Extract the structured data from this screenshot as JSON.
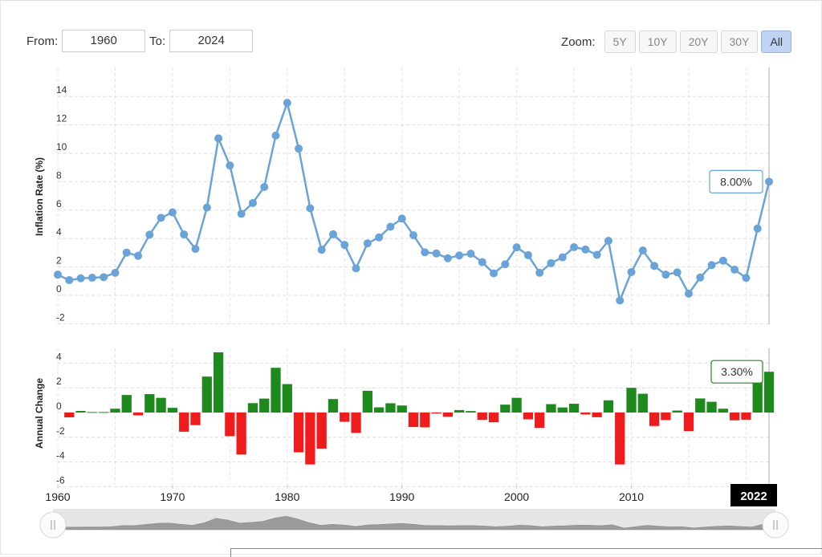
{
  "range": {
    "from_label": "From:",
    "from_value": "1960",
    "to_label": "To:",
    "to_value": "2024"
  },
  "zoom": {
    "label": "Zoom:",
    "buttons": [
      "5Y",
      "10Y",
      "20Y",
      "30Y",
      "All"
    ],
    "active": "All"
  },
  "chart_data": [
    {
      "type": "line",
      "ylabel": "Inflation Rate (%)",
      "ylim": [
        -2,
        14
      ],
      "yticks": [
        -2,
        0,
        2,
        4,
        6,
        8,
        10,
        12,
        14
      ],
      "color": "#6aa3d8",
      "tooltip": "8.00%",
      "x": [
        1960,
        1961,
        1962,
        1963,
        1964,
        1965,
        1966,
        1967,
        1968,
        1969,
        1970,
        1971,
        1972,
        1973,
        1974,
        1975,
        1976,
        1977,
        1978,
        1979,
        1980,
        1981,
        1982,
        1983,
        1984,
        1985,
        1986,
        1987,
        1988,
        1989,
        1990,
        1991,
        1992,
        1993,
        1994,
        1995,
        1996,
        1997,
        1998,
        1999,
        2000,
        2001,
        2002,
        2003,
        2004,
        2005,
        2006,
        2007,
        2008,
        2009,
        2010,
        2011,
        2012,
        2013,
        2014,
        2015,
        2016,
        2017,
        2018,
        2019,
        2020,
        2021,
        2022
      ],
      "values": [
        1.46,
        1.07,
        1.2,
        1.24,
        1.28,
        1.59,
        3.01,
        2.78,
        4.27,
        5.46,
        5.84,
        4.29,
        3.27,
        6.18,
        11.05,
        9.14,
        5.74,
        6.5,
        7.63,
        11.25,
        13.55,
        10.33,
        6.13,
        3.21,
        4.3,
        3.55,
        1.9,
        3.66,
        4.08,
        4.83,
        5.4,
        4.23,
        3.03,
        2.95,
        2.61,
        2.81,
        2.93,
        2.34,
        1.55,
        2.19,
        3.38,
        2.83,
        1.59,
        2.27,
        2.68,
        3.39,
        3.23,
        2.85,
        3.84,
        -0.36,
        1.64,
        3.16,
        2.07,
        1.46,
        1.62,
        0.12,
        1.26,
        2.13,
        2.44,
        1.81,
        1.23,
        4.7,
        8.0
      ]
    },
    {
      "type": "bar",
      "ylabel": "Annual Change",
      "ylim": [
        -6,
        5
      ],
      "yticks": [
        -6,
        -4,
        -2,
        0,
        2,
        4
      ],
      "positive_color": "#1e8a1e",
      "negative_color": "#ee1c1c",
      "tooltip": "3.30%",
      "x": [
        1961,
        1962,
        1963,
        1964,
        1965,
        1966,
        1967,
        1968,
        1969,
        1970,
        1971,
        1972,
        1973,
        1974,
        1975,
        1976,
        1977,
        1978,
        1979,
        1980,
        1981,
        1982,
        1983,
        1984,
        1985,
        1986,
        1987,
        1988,
        1989,
        1990,
        1991,
        1992,
        1993,
        1994,
        1995,
        1996,
        1997,
        1998,
        1999,
        2000,
        2001,
        2002,
        2003,
        2004,
        2005,
        2006,
        2007,
        2008,
        2009,
        2010,
        2011,
        2012,
        2013,
        2014,
        2015,
        2016,
        2017,
        2018,
        2019,
        2020,
        2021,
        2022
      ],
      "values": [
        -0.39,
        0.13,
        0.04,
        0.04,
        0.31,
        1.42,
        -0.23,
        1.49,
        1.19,
        0.38,
        -1.55,
        -1.02,
        2.91,
        4.87,
        -1.91,
        -3.4,
        0.76,
        1.13,
        3.62,
        2.3,
        -3.22,
        -4.2,
        -2.92,
        1.09,
        -0.75,
        -1.65,
        1.76,
        0.42,
        0.75,
        0.57,
        -1.17,
        -1.2,
        -0.08,
        -0.34,
        0.2,
        0.12,
        -0.59,
        -0.79,
        0.64,
        1.19,
        -0.55,
        -1.24,
        0.68,
        0.41,
        0.71,
        -0.16,
        -0.38,
        0.99,
        -4.2,
        2.0,
        1.52,
        -1.09,
        -0.61,
        0.16,
        -1.5,
        1.14,
        0.87,
        0.31,
        -0.63,
        -0.58,
        3.47,
        3.3
      ]
    }
  ],
  "x_axis": {
    "ticks": [
      1960,
      1970,
      1980,
      1990,
      2000,
      2010
    ],
    "highlight": "2022"
  }
}
